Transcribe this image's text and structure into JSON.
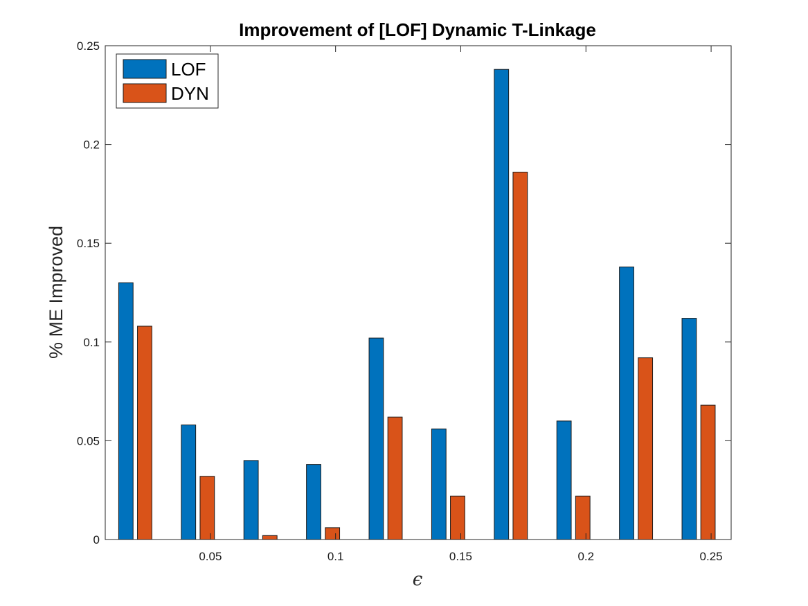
{
  "chart_data": {
    "type": "bar",
    "title": "Improvement of [LOF] Dynamic T-Linkage",
    "xlabel": "ϵ",
    "ylabel": "% ME Improved",
    "x_tick_values": [
      0.05,
      0.1,
      0.15,
      0.2,
      0.25
    ],
    "x_tick_labels": [
      "0.05",
      "0.1",
      "0.15",
      "0.2",
      "0.25"
    ],
    "y_tick_values": [
      0,
      0.05,
      0.1,
      0.15,
      0.2,
      0.25
    ],
    "y_tick_labels": [
      "0",
      "0.05",
      "0.1",
      "0.15",
      "0.2",
      "0.25"
    ],
    "xlim": [
      0.008,
      0.258
    ],
    "ylim": [
      0,
      0.25
    ],
    "categories": [
      0.02,
      0.045,
      0.07,
      0.095,
      0.12,
      0.145,
      0.17,
      0.195,
      0.22,
      0.245
    ],
    "series": [
      {
        "name": "LOF",
        "color": "#0072BD",
        "values": [
          0.13,
          0.058,
          0.04,
          0.038,
          0.102,
          0.056,
          0.238,
          0.06,
          0.138,
          0.112
        ]
      },
      {
        "name": "DYN",
        "color": "#D95319",
        "values": [
          0.108,
          0.032,
          0.002,
          0.006,
          0.062,
          0.022,
          0.186,
          0.022,
          0.092,
          0.068
        ]
      }
    ],
    "legend_position": "top-left",
    "grid": false
  }
}
